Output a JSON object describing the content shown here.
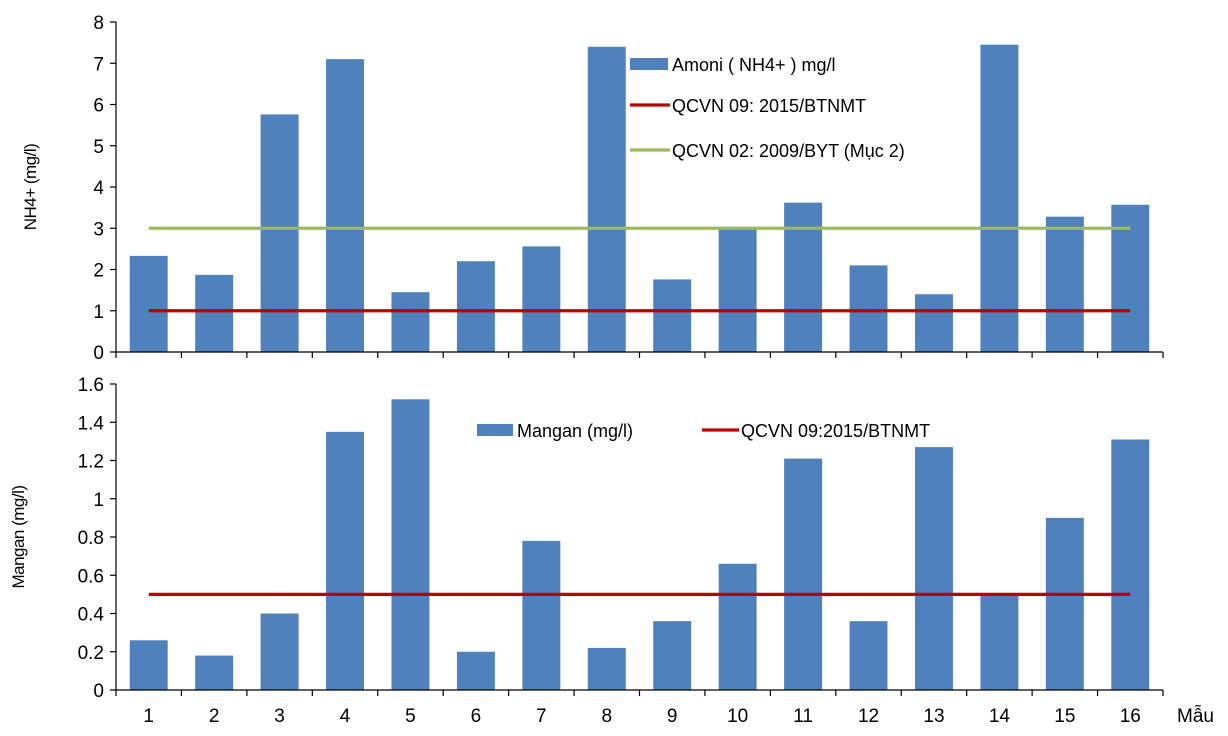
{
  "chart_data": [
    {
      "type": "bar",
      "categories": [
        "1",
        "2",
        "3",
        "4",
        "5",
        "6",
        "7",
        "8",
        "9",
        "10",
        "11",
        "12",
        "13",
        "14",
        "15",
        "16"
      ],
      "ylabel": "NH4+ (mg/l)",
      "ylim": [
        0,
        8
      ],
      "yticks": [
        0,
        1,
        2,
        3,
        4,
        5,
        6,
        7,
        8
      ],
      "grid": false,
      "legend_position": "top-right",
      "series": [
        {
          "name": "Amoni ( NH4+ )  mg/l",
          "kind": "bar",
          "color": "#4f81bd",
          "values": [
            2.33,
            1.87,
            5.76,
            7.1,
            1.45,
            2.2,
            2.56,
            7.4,
            1.76,
            3.0,
            3.62,
            2.1,
            1.4,
            7.45,
            3.28,
            3.57
          ]
        },
        {
          "name": "QCVN 09: 2015/BTNMT",
          "kind": "line",
          "color": "#c00000",
          "values": [
            1,
            1,
            1,
            1,
            1,
            1,
            1,
            1,
            1,
            1,
            1,
            1,
            1,
            1,
            1,
            1
          ]
        },
        {
          "name": "QCVN 02: 2009/BYT (Mục 2)",
          "kind": "line",
          "color": "#9bbb59",
          "values": [
            3,
            3,
            3,
            3,
            3,
            3,
            3,
            3,
            3,
            3,
            3,
            3,
            3,
            3,
            3,
            3
          ]
        }
      ]
    },
    {
      "type": "bar",
      "categories": [
        "1",
        "2",
        "3",
        "4",
        "5",
        "6",
        "7",
        "8",
        "9",
        "10",
        "11",
        "12",
        "13",
        "14",
        "15",
        "16"
      ],
      "xlabel": "Mẫu",
      "ylabel": "Mangan (mg/l)",
      "ylim": [
        0,
        1.6
      ],
      "yticks": [
        "0",
        "0.2",
        "0.4",
        "0.6",
        "0.8",
        "1",
        "1.2",
        "1.4",
        "1.6"
      ],
      "grid": false,
      "legend_position": "top-center",
      "series": [
        {
          "name": "Mangan (mg/l)",
          "kind": "bar",
          "color": "#4f81bd",
          "values": [
            0.26,
            0.18,
            0.4,
            1.35,
            1.52,
            0.2,
            0.78,
            0.22,
            0.36,
            0.66,
            1.21,
            0.36,
            1.27,
            0.5,
            0.9,
            1.31
          ]
        },
        {
          "name": "QCVN 09:2015/BTNMT",
          "kind": "line",
          "color": "#c00000",
          "values": [
            0.5,
            0.5,
            0.5,
            0.5,
            0.5,
            0.5,
            0.5,
            0.5,
            0.5,
            0.5,
            0.5,
            0.5,
            0.5,
            0.5,
            0.5,
            0.5
          ]
        }
      ]
    }
  ]
}
